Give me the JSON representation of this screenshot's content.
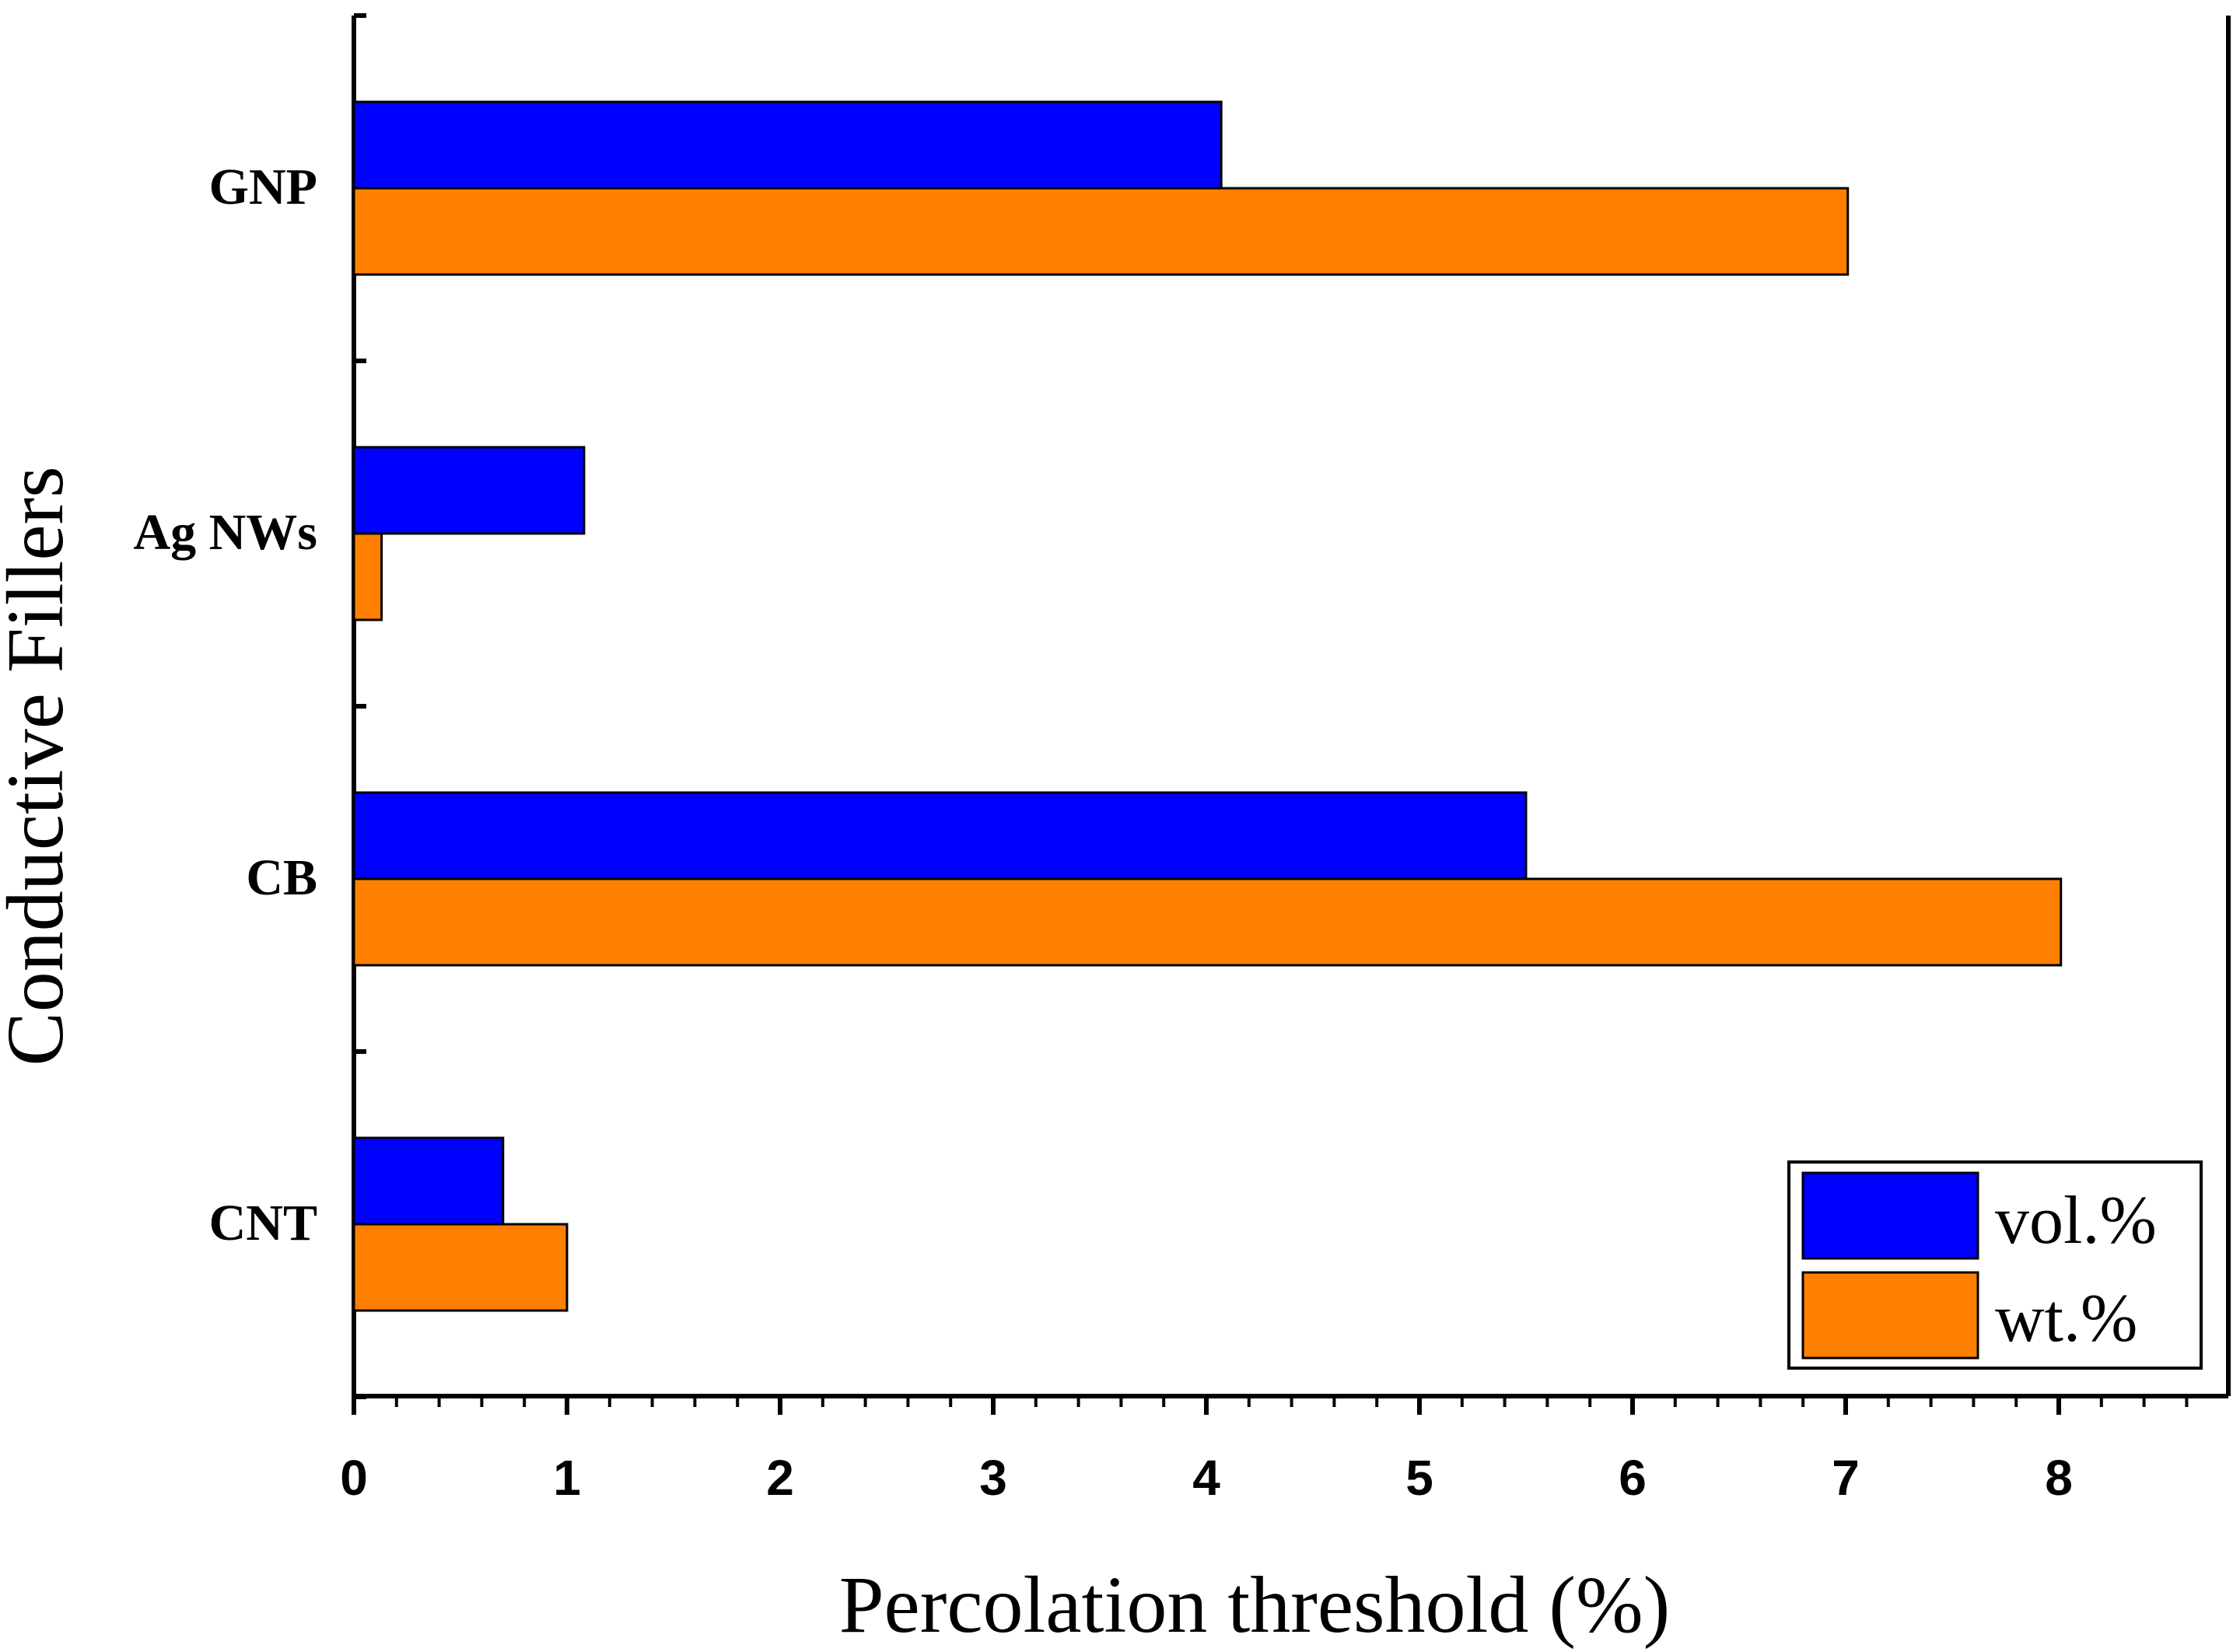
{
  "chart_data": {
    "type": "bar",
    "orientation": "horizontal",
    "title": "",
    "xlabel": "Percolation threshold (%)",
    "ylabel": "Conductive Fillers",
    "categories": [
      "GNP",
      "Ag NWs",
      "CB",
      "CNT"
    ],
    "xlim": [
      0,
      8.8
    ],
    "xticks": [
      "0",
      "1",
      "2",
      "3",
      "4",
      "5",
      "6",
      "7",
      "8"
    ],
    "series": [
      {
        "name": "vol.%",
        "color": "#0000ff",
        "values": [
          4.07,
          1.08,
          5.5,
          0.7
        ]
      },
      {
        "name": "wt.%",
        "color": "#ff7f00",
        "values": [
          7.01,
          0.13,
          8.01,
          1.0
        ]
      }
    ],
    "legend": {
      "position": "bottom-right"
    },
    "grid": false
  }
}
